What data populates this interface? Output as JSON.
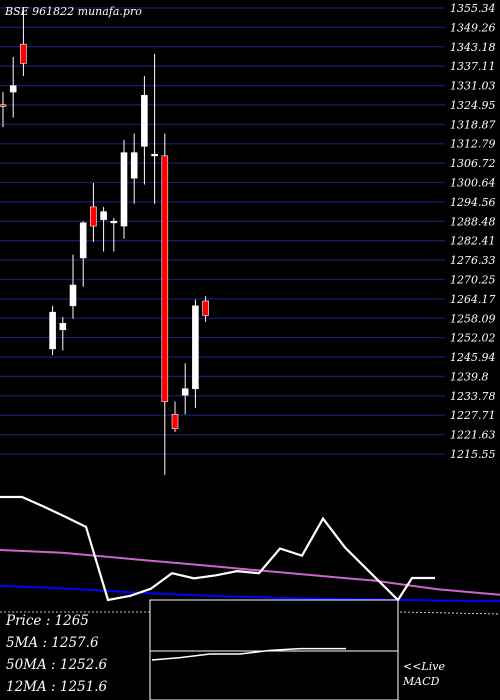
{
  "header": {
    "title": "BSE 961822  munafa.pro"
  },
  "colors": {
    "background": "#000000",
    "grid": "#1a1a6e",
    "up_candle": "#ffffff",
    "down_candle": "#ff0000",
    "ma_short": "#ffffff",
    "ma_long": "#cc66cc",
    "ma_slow": "#0000ff"
  },
  "chart_data": [
    {
      "type": "candlestick",
      "title": "BSE 961822  munafa.pro",
      "y_ticks": [
        "1355.34",
        "1349.26",
        "1343.18",
        "1337.11",
        "1331.03",
        "1324.95",
        "1318.87",
        "1312.79",
        "1306.72",
        "1300.64",
        "1294.56",
        "1288.48",
        "1282.41",
        "1276.33",
        "1270.25",
        "1264.17",
        "1258.09",
        "1252.02",
        "1245.94",
        "1239.8",
        "1233.78",
        "1227.71",
        "1221.63",
        "1215.55"
      ],
      "ylim": [
        1212,
        1360
      ],
      "grid": true,
      "candles": [
        {
          "o": 1325.0,
          "h": 1329.0,
          "l": 1318.0,
          "c": 1324.5
        },
        {
          "o": 1329.0,
          "h": 1340.0,
          "l": 1321.0,
          "c": 1331.0
        },
        {
          "o": 1344.0,
          "h": 1355.5,
          "l": 1334.0,
          "c": 1338.0
        },
        {
          "o": 1248.5,
          "h": 1262.0,
          "l": 1246.5,
          "c": 1260.0
        },
        {
          "o": 1254.5,
          "h": 1258.5,
          "l": 1248.0,
          "c": 1256.5
        },
        {
          "o": 1262.0,
          "h": 1278.0,
          "l": 1258.0,
          "c": 1268.5
        },
        {
          "o": 1277.0,
          "h": 1288.5,
          "l": 1268.0,
          "c": 1288.0
        },
        {
          "o": 1293.0,
          "h": 1300.5,
          "l": 1282.0,
          "c": 1287.0
        },
        {
          "o": 1289.0,
          "h": 1293.0,
          "l": 1279.0,
          "c": 1291.5
        },
        {
          "o": 1288.0,
          "h": 1289.5,
          "l": 1279.0,
          "c": 1288.5
        },
        {
          "o": 1287.0,
          "h": 1314.0,
          "l": 1283.0,
          "c": 1310.0
        },
        {
          "o": 1302.0,
          "h": 1316.0,
          "l": 1294.0,
          "c": 1310.0
        },
        {
          "o": 1312.0,
          "h": 1334.0,
          "l": 1300.0,
          "c": 1328.0
        },
        {
          "o": 1309.0,
          "h": 1341.0,
          "l": 1294.0,
          "c": 1309.5
        },
        {
          "o": 1309.0,
          "h": 1316.0,
          "l": 1209.0,
          "c": 1232.0
        },
        {
          "o": 1228.0,
          "h": 1232.0,
          "l": 1222.5,
          "c": 1223.5
        },
        {
          "o": 1234.0,
          "h": 1244.0,
          "l": 1228.0,
          "c": 1236.0
        },
        {
          "o": 1236.0,
          "h": 1264.0,
          "l": 1230.0,
          "c": 1262.0
        },
        {
          "o": 1263.5,
          "h": 1265.0,
          "l": 1257.0,
          "c": 1259.0
        }
      ]
    },
    {
      "type": "line",
      "title": "",
      "series": [
        {
          "values": [
            1,
            1,
            0.91,
            0.81,
            0.71,
            0,
            0.04,
            0.11,
            0.26,
            0.21,
            0.24,
            0.28,
            0.26,
            0.5,
            0.43,
            0.79,
            0.51
          ]
        },
        {
          "values": [
            0.32,
            0.31,
            0.3,
            0.28,
            0.26,
            0.24,
            0.22,
            0.2,
            0.18,
            0.16,
            0.14,
            0.12,
            0.1,
            0.07,
            0.04,
            0.02,
            0
          ]
        },
        {
          "values": [
            0.3,
            0.28,
            0.25,
            0.22,
            0.18,
            0.15,
            0.12,
            0.1,
            0.08,
            0.06,
            0.05,
            0.04,
            0.03,
            0.02,
            0.01,
            0,
            0
          ]
        }
      ],
      "ylim": [
        0,
        1
      ]
    },
    {
      "type": "line",
      "title": "MACD",
      "series": [
        {
          "values": [
            0,
            0.2,
            0.5,
            0.5,
            0.8,
            0.95,
            0.95,
            0.95
          ]
        }
      ],
      "ylim": [
        0,
        1
      ]
    }
  ],
  "info_box": {
    "price": "Price   : 1265",
    "ma5": "5MA : 1257.6",
    "ma50": "50MA : 1252.6",
    "ma12": "12MA : 1251.6"
  },
  "macd": {
    "live_label": "<<Live",
    "macd_label": "MACD"
  }
}
